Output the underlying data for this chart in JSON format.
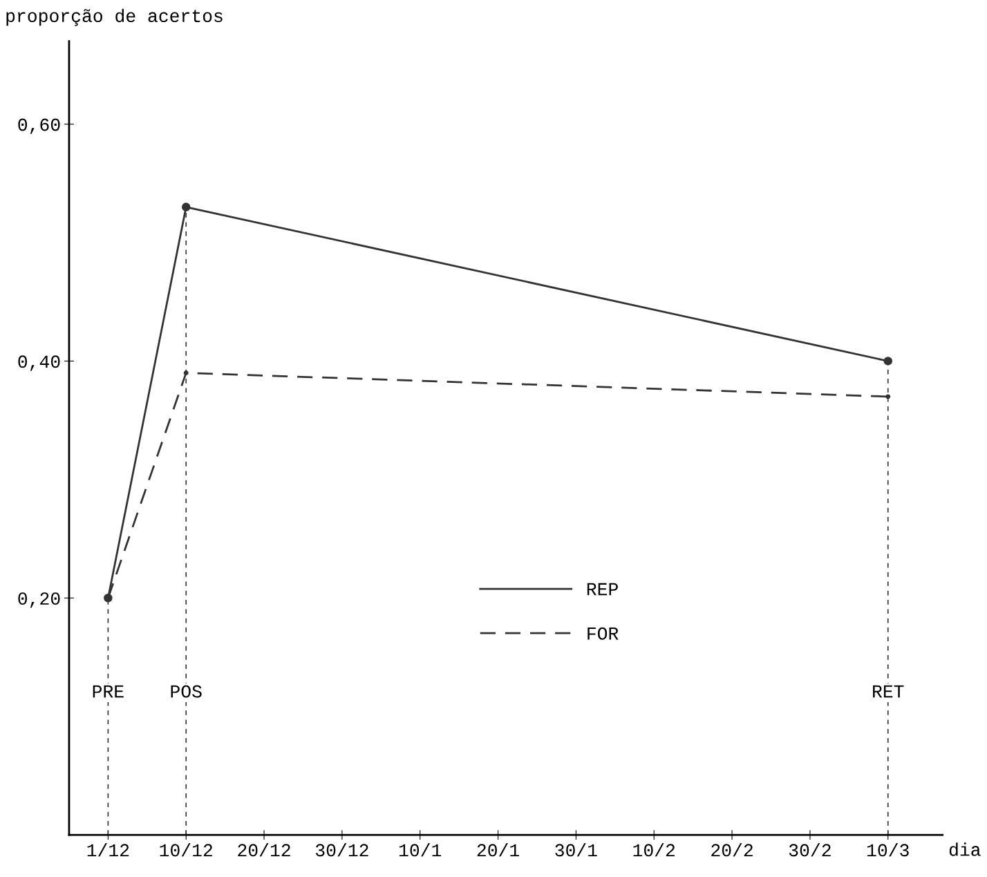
{
  "chart_data": {
    "type": "line",
    "xlabel": "dia",
    "ylabel": "proporção de acertos",
    "categories": [
      "1/12",
      "10/12",
      "20/12",
      "30/12",
      "10/1",
      "20/1",
      "30/1",
      "10/2",
      "20/2",
      "30/2",
      "10/3"
    ],
    "series": [
      {
        "name": "REP",
        "color": "#333333",
        "x": [
          "1/12",
          "10/12",
          "10/3"
        ],
        "values": [
          0.2,
          0.53,
          0.4
        ],
        "line_style": "solid"
      },
      {
        "name": "FOR",
        "color": "#333333",
        "x": [
          "1/12",
          "10/12",
          "10/3"
        ],
        "values": [
          0.2,
          0.39,
          0.37
        ],
        "line_style": "dashed"
      }
    ],
    "ylim": [
      0,
      0.67
    ],
    "yticks": [
      {
        "value": 0.2,
        "label": "0,20"
      },
      {
        "value": 0.4,
        "label": "0,40"
      },
      {
        "value": 0.6,
        "label": "0,60"
      }
    ],
    "ref_lines": [
      {
        "axis": "x",
        "value": "1/12",
        "label": "PRE",
        "line_style": "dotted"
      },
      {
        "axis": "x",
        "value": "10/12",
        "label": "POS",
        "line_style": "dotted"
      },
      {
        "axis": "x",
        "value": "10/3",
        "label": "RET",
        "line_style": "dotted"
      }
    ],
    "grid": false,
    "legend": "center",
    "marker": "circle"
  }
}
